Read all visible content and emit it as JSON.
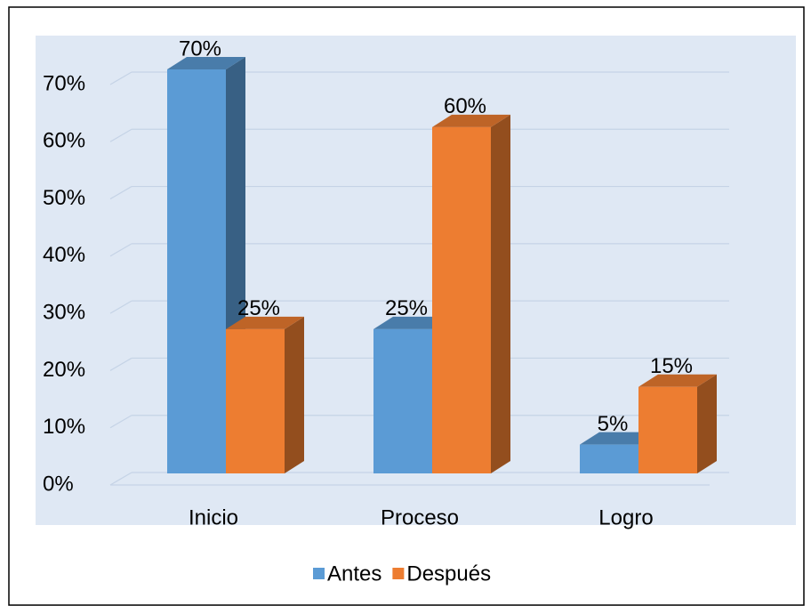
{
  "chart_data": {
    "type": "bar3d",
    "categories": [
      "Inicio",
      "Proceso",
      "Logro"
    ],
    "series": [
      {
        "name": "Antes",
        "color": "#5b9bd5",
        "values": [
          70,
          25,
          5
        ],
        "value_labels": [
          "70%",
          "25%",
          "5%"
        ]
      },
      {
        "name": "Después",
        "color": "#ed7d31",
        "values": [
          25,
          60,
          15
        ],
        "value_labels": [
          "25%",
          "60%",
          "15%"
        ]
      }
    ],
    "ylim": [
      0,
      70
    ],
    "yticks": [
      {
        "value": 0,
        "label": "0%"
      },
      {
        "value": 10,
        "label": "10%"
      },
      {
        "value": 20,
        "label": "20%"
      },
      {
        "value": 30,
        "label": "30%"
      },
      {
        "value": 40,
        "label": "40%"
      },
      {
        "value": 50,
        "label": "50%"
      },
      {
        "value": 60,
        "label": "60%"
      },
      {
        "value": 70,
        "label": "70%"
      }
    ],
    "grid": true,
    "legend": "bottom"
  }
}
